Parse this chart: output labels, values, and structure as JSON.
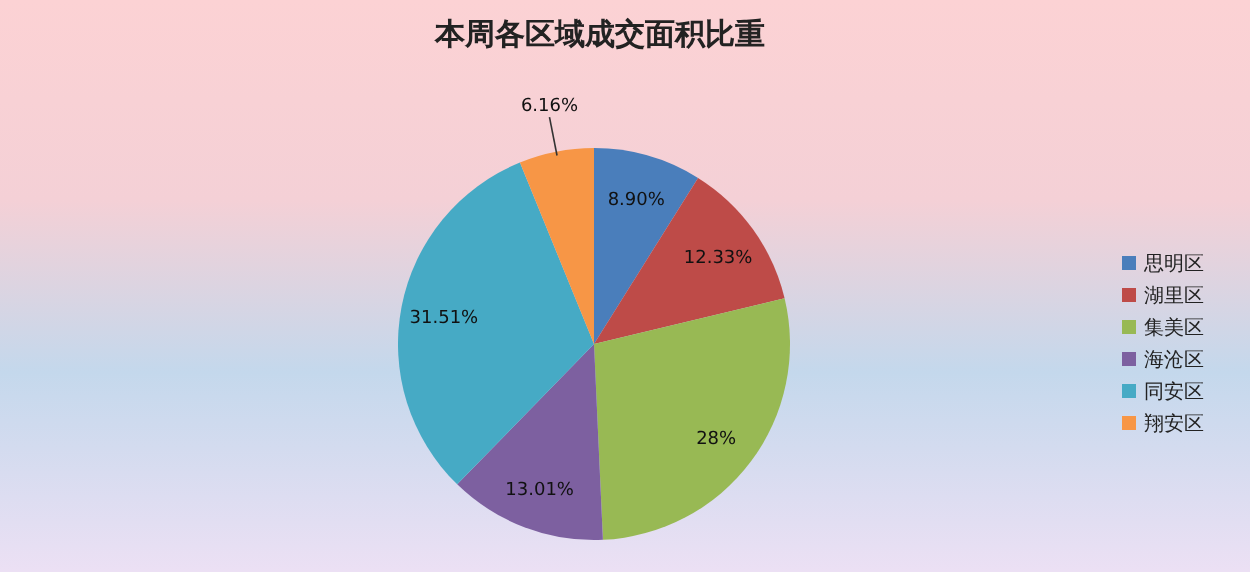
{
  "chart_data": {
    "type": "pie",
    "title": "本周各区域成交面积比重",
    "categories": [
      "思明区",
      "湖里区",
      "集美区",
      "海沧区",
      "同安区",
      "翔安区"
    ],
    "values": [
      8.9,
      12.33,
      28,
      13.01,
      31.51,
      6.16
    ],
    "value_labels": [
      "8.90%",
      "12.33%",
      "28%",
      "13.01%",
      "31.51%",
      "6.16%"
    ],
    "colors": [
      "#4a7ebb",
      "#be4b48",
      "#98b954",
      "#7d60a0",
      "#46aac5",
      "#f79646"
    ],
    "legend": "right"
  }
}
